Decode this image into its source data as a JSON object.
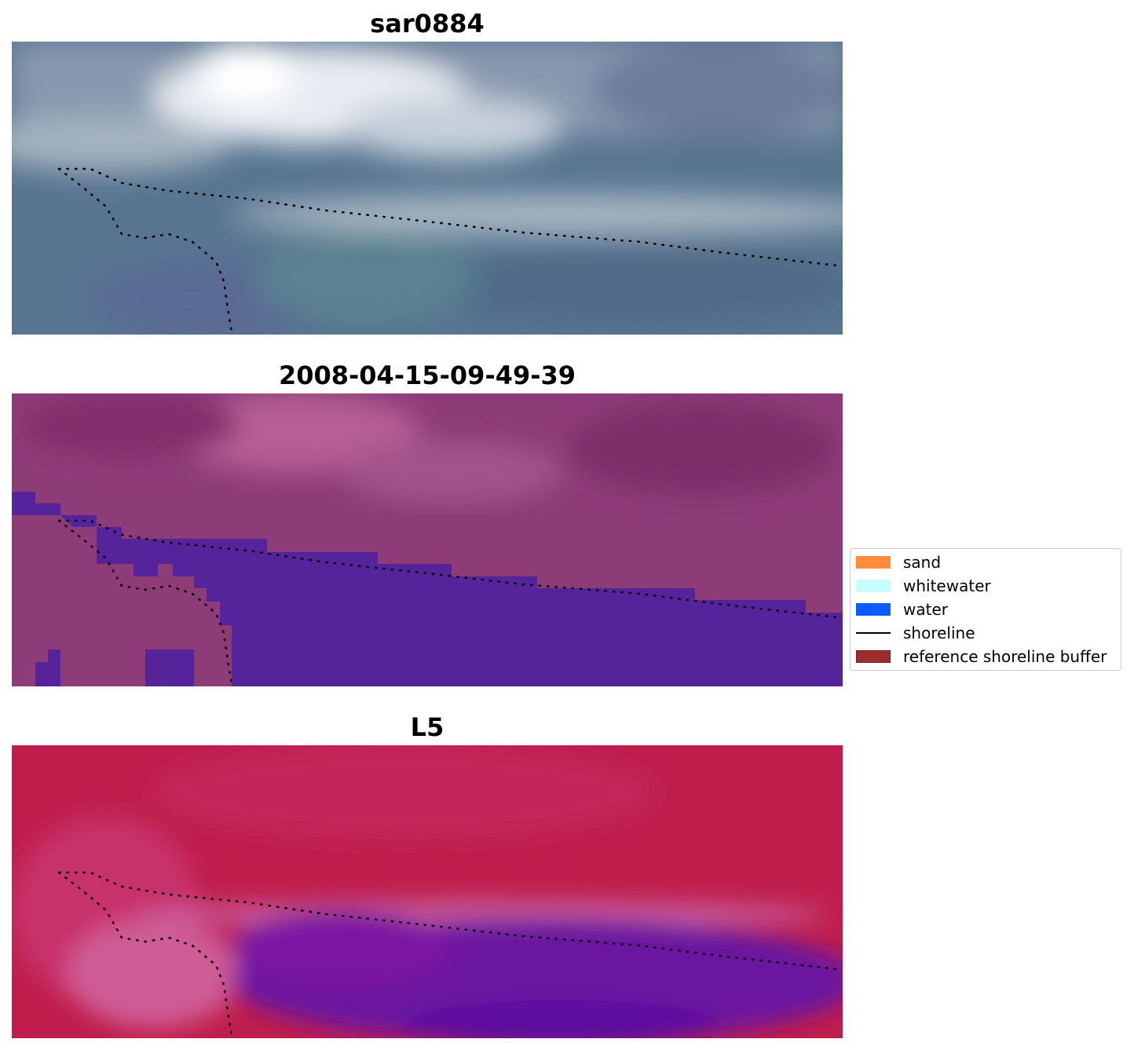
{
  "panels": [
    {
      "title": "sar0884",
      "kind": "rgb"
    },
    {
      "title": "2008-04-15-09-49-39",
      "kind": "classified"
    },
    {
      "title": "L5",
      "kind": "index"
    }
  ],
  "legend": {
    "items": [
      {
        "label": "sand",
        "color": "#ff8c3a",
        "type": "patch"
      },
      {
        "label": "whitewater",
        "color": "#c8ffff",
        "type": "patch"
      },
      {
        "label": "water",
        "color": "#0a5cff",
        "type": "patch"
      },
      {
        "label": "shoreline",
        "color": "#000000",
        "type": "line"
      },
      {
        "label": "reference shoreline buffer",
        "color": "#9b2d2d",
        "type": "patch"
      }
    ]
  }
}
